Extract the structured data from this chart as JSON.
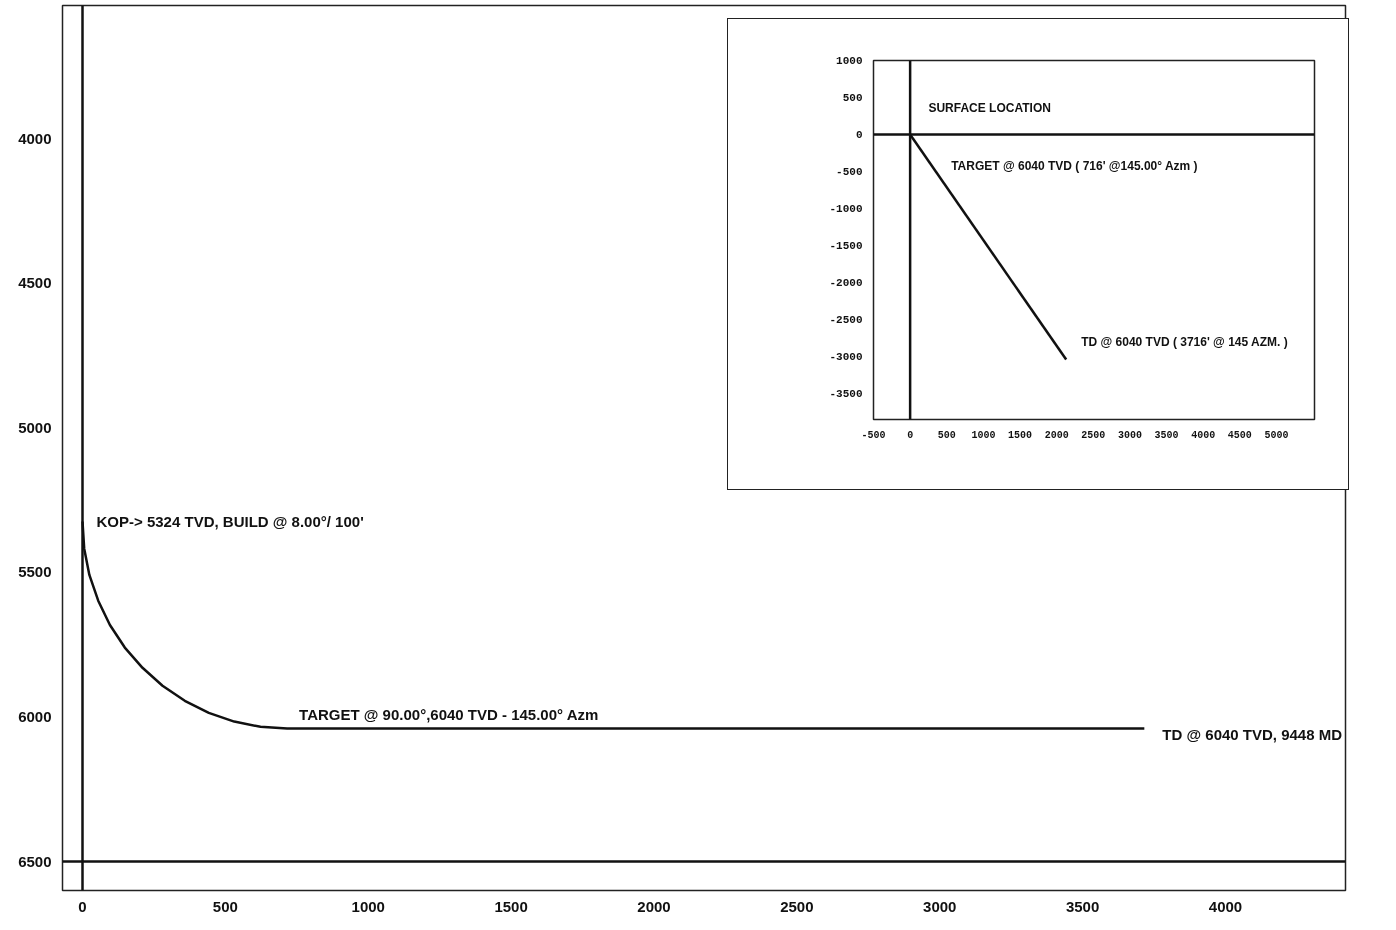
{
  "chart_data": [
    {
      "type": "line",
      "x": [
        0,
        6,
        24,
        55,
        96,
        148,
        210,
        280,
        358,
        442,
        531,
        623,
        716,
        3716
      ],
      "series": [
        {
          "color": "#111111",
          "values": [
            5324,
            5418,
            5509,
            5598,
            5682,
            5760,
            5830,
            5892,
            5944,
            5986,
            6016,
            6034,
            6040,
            6040
          ]
        }
      ],
      "xlim": [
        -70,
        4420
      ],
      "ylim": [
        6600,
        3540
      ],
      "xticks": [
        0,
        500,
        1000,
        1500,
        2000,
        2500,
        3000,
        3500,
        4000
      ],
      "yticks": [
        4000,
        4500,
        5000,
        5500,
        6000,
        6500
      ],
      "grid": false,
      "marker": "none",
      "line_style": "solid",
      "ref_lines": [
        {
          "axis": "x",
          "value": 0,
          "label": null
        },
        {
          "axis": "y",
          "value": 6500,
          "label": null
        }
      ],
      "annotations": [
        {
          "text": "KOP-> 5324 TVD, BUILD @ 8.00°/ 100'",
          "x": 0,
          "y": 5324
        },
        {
          "text": "TARGET @ 90.00°,6040 TVD - 145.00° Azm",
          "x": 716,
          "y": 6040
        },
        {
          "text": "TD @ 6040 TVD, 9448 MD",
          "x": 3716,
          "y": 6040
        }
      ]
    },
    {
      "type": "line",
      "x": [
        0,
        2130
      ],
      "series": [
        {
          "color": "#111111",
          "values": [
            0,
            -3040
          ]
        }
      ],
      "xlim": [
        -500,
        5520
      ],
      "ylim": [
        -3850,
        1000
      ],
      "xticks": [
        -500,
        0,
        500,
        1000,
        1500,
        2000,
        2500,
        3000,
        3500,
        4000,
        4500,
        5000
      ],
      "yticks": [
        1000,
        500,
        0,
        -500,
        -1000,
        -1500,
        -2000,
        -2500,
        -3000,
        -3500
      ],
      "grid": false,
      "marker": "none",
      "line_style": "solid",
      "ref_lines": [
        {
          "axis": "x",
          "value": 0,
          "label": null
        },
        {
          "axis": "y",
          "value": 0,
          "label": null
        }
      ],
      "annotations": [
        "SURFACE LOCATION",
        "TARGET @ 6040 TVD ( 716' @145.00° Azm )",
        {
          "text": "TD @ 6040 TVD ( 3716' @ 145 AZM. )",
          "x": 2130,
          "y": -3040
        }
      ]
    }
  ]
}
